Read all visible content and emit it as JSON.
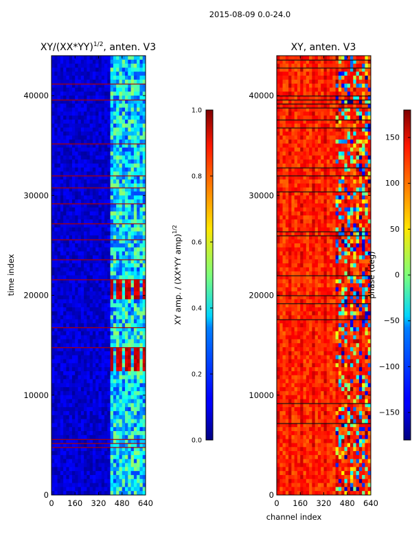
{
  "figure": {
    "suptitle": "2015-08-09 0.0-24.0"
  },
  "chart_data": [
    {
      "type": "heatmap",
      "title": "XY/(XX*YY)",
      "title_superscript": "1/2",
      "title_suffix": ", anten. V3",
      "xlabel": "",
      "ylabel": "time index",
      "xlim": [
        0,
        640
      ],
      "ylim": [
        0,
        44000
      ],
      "xticks": [
        0,
        160,
        320,
        480,
        640
      ],
      "yticks": [
        0,
        10000,
        20000,
        30000,
        40000
      ],
      "colormap": "jet",
      "colorbar": {
        "label": "XY amp. / (XX*YY amp)",
        "label_superscript": "1/2",
        "range": [
          0.0,
          1.0
        ],
        "ticks": [
          "0.0",
          "0.2",
          "0.4",
          "0.6",
          "0.8",
          "1.0"
        ]
      },
      "description_values": {
        "low_channel_level": 0.08,
        "high_channel_level": 0.35,
        "hot_blocks": [
          {
            "t_from": 19500,
            "t_to": 21500,
            "value": 0.92
          },
          {
            "t_from": 12200,
            "t_to": 14800,
            "value": 0.92
          }
        ]
      }
    },
    {
      "type": "heatmap",
      "title": "XY, anten. V3",
      "xlabel": "channel index",
      "ylabel": "",
      "xlim": [
        0,
        640
      ],
      "ylim": [
        0,
        44000
      ],
      "xticks": [
        0,
        160,
        320,
        480,
        640
      ],
      "yticks": [
        0,
        10000,
        20000,
        30000,
        40000
      ],
      "colormap": "jet",
      "colorbar": {
        "label": "phase (deg)",
        "range": [
          -180,
          180
        ],
        "ticks": [
          "−150",
          "−100",
          "−50",
          "0",
          "50",
          "100",
          "150"
        ]
      },
      "description_values": {
        "dominant_phase": 120,
        "rfi_region_channels": [
          400,
          640
        ]
      }
    }
  ]
}
